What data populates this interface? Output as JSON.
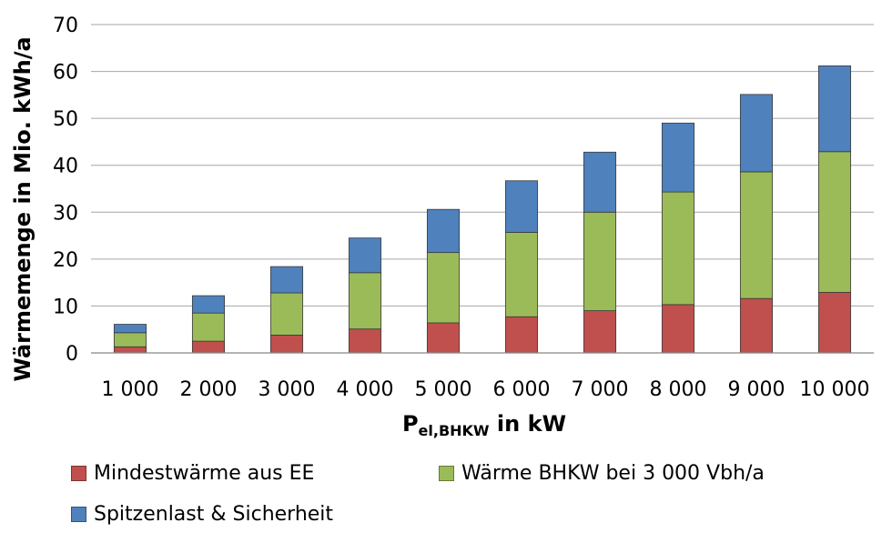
{
  "chart_data": {
    "type": "bar",
    "stacked": true,
    "categories": [
      "1 000",
      "2 000",
      "3 000",
      "4 000",
      "5 000",
      "6 000",
      "7 000",
      "8 000",
      "9 000",
      "10 000"
    ],
    "series": [
      {
        "name": "Mindestwärme aus EE",
        "color": "#c0504d",
        "values": [
          1.3,
          2.5,
          3.8,
          5.1,
          6.4,
          7.7,
          9.0,
          10.3,
          11.6,
          12.9
        ]
      },
      {
        "name": "Wärme BHKW bei 3 000 Vbh/a",
        "color": "#9bbb59",
        "values": [
          3.0,
          6.0,
          9.0,
          12.0,
          15.0,
          18.0,
          21.0,
          24.0,
          27.0,
          30.0
        ]
      },
      {
        "name": "Spitzenlast & Sicherheit",
        "color": "#4f81bd",
        "values": [
          1.8,
          3.7,
          5.6,
          7.4,
          9.2,
          11.0,
          12.8,
          14.7,
          16.5,
          18.3
        ]
      }
    ],
    "title": "",
    "xlabel": {
      "main": "P",
      "subscript": "el,BHKW",
      "suffix": " in kW"
    },
    "ylabel": "Wärmemenge in Mio. kWh/a",
    "ylim": [
      0,
      70
    ],
    "yticks": [
      "0",
      "10",
      "20",
      "30",
      "40",
      "50",
      "60",
      "70"
    ],
    "grid": true,
    "legend": "bottom"
  }
}
